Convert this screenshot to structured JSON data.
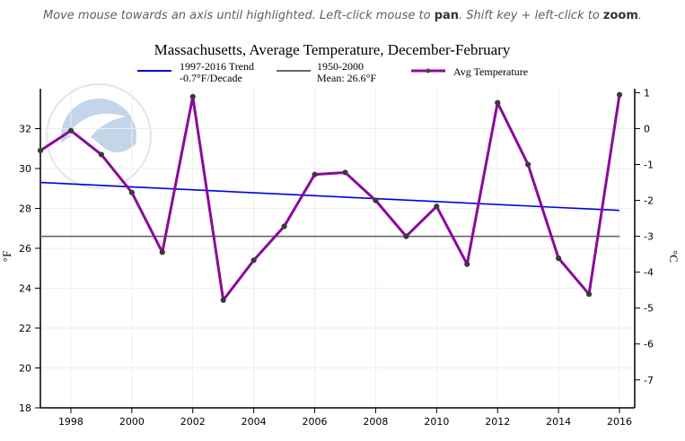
{
  "instructions": {
    "part1": "Move mouse towards an axis until highlighted. Left-click mouse to ",
    "pan": "pan",
    "part2": ". Shift key + left-click to ",
    "zoom": "zoom",
    "part3": "."
  },
  "chart_data": {
    "type": "line",
    "title": "Massachusetts, Average Temperature, December-February",
    "ylabel": "°F",
    "ylabel_right": "°C",
    "xlim": [
      1997,
      2016.5
    ],
    "ylim": [
      18,
      34
    ],
    "ylim_right": [
      -7.78,
      1.11
    ],
    "grid": true,
    "legend_position": "top",
    "x_ticks": [
      1998,
      2000,
      2002,
      2004,
      2006,
      2008,
      2010,
      2012,
      2014,
      2016
    ],
    "y_ticks": [
      18,
      20,
      22,
      24,
      26,
      28,
      30,
      32
    ],
    "y_ticks_right": [
      -7,
      -6,
      -5,
      -4,
      -3,
      -2,
      -1,
      0,
      1
    ],
    "series": [
      {
        "name": "Avg Temperature",
        "color": "#8b0a9b",
        "marker": "circle",
        "x": [
          1997,
          1998,
          1999,
          2000,
          2001,
          2002,
          2003,
          2004,
          2005,
          2006,
          2007,
          2008,
          2009,
          2010,
          2011,
          2012,
          2013,
          2014,
          2015,
          2016
        ],
        "y": [
          30.9,
          31.9,
          30.7,
          28.8,
          25.8,
          33.6,
          23.4,
          25.4,
          27.1,
          29.7,
          29.8,
          28.4,
          26.6,
          28.1,
          25.2,
          33.3,
          30.2,
          25.5,
          23.7,
          33.7
        ]
      },
      {
        "name": "1997-2016 Trend",
        "label_line2": "-0.7°F/Decade",
        "color": "#0000dd",
        "x": [
          1997,
          2016
        ],
        "y": [
          29.3,
          27.9
        ]
      },
      {
        "name": "1950-2000",
        "label_line2": "Mean: 26.6°F",
        "color": "#666666",
        "x": [
          1997,
          2016
        ],
        "y": [
          26.6,
          26.6
        ]
      }
    ]
  }
}
